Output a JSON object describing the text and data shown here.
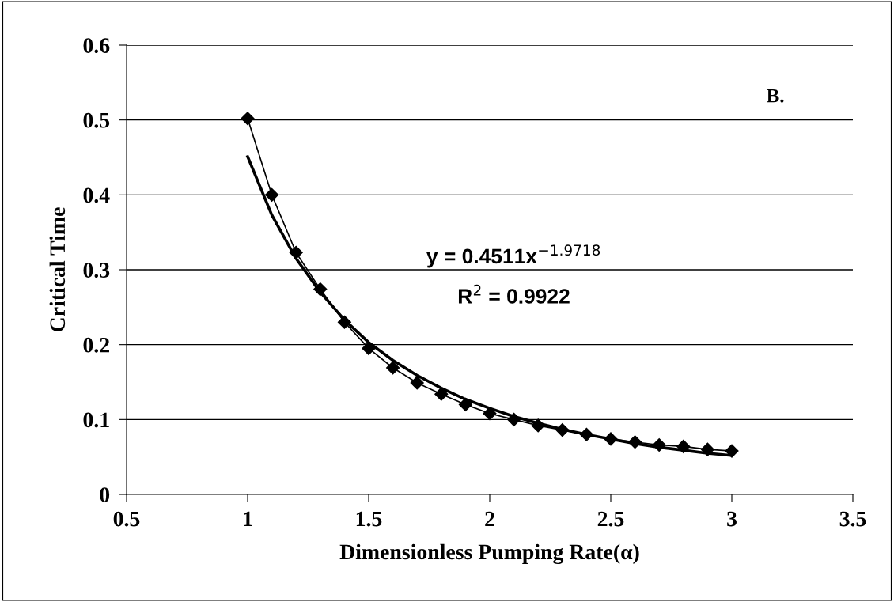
{
  "chart_data": {
    "type": "line",
    "xlabel": "Dimensionless Pumping Rate(α)",
    "ylabel": "Critical Time",
    "xlim": [
      0.5,
      3.5
    ],
    "xticks": [
      0.5,
      1,
      1.5,
      2,
      2.5,
      3,
      3.5
    ],
    "ylim": [
      0,
      0.6
    ],
    "yticks": [
      0,
      0.1,
      0.2,
      0.3,
      0.4,
      0.5,
      0.6
    ],
    "grid": "y",
    "legend": false,
    "series": [
      {
        "color": "#000000",
        "marker": "diamond",
        "x": [
          1.0,
          1.1,
          1.2,
          1.3,
          1.4,
          1.5,
          1.6,
          1.7,
          1.8,
          1.9,
          2.0,
          2.1,
          2.2,
          2.3,
          2.4,
          2.5,
          2.6,
          2.7,
          2.8,
          2.9,
          3.0
        ],
        "values": [
          0.502,
          0.4,
          0.323,
          0.274,
          0.23,
          0.195,
          0.169,
          0.149,
          0.134,
          0.12,
          0.108,
          0.1,
          0.092,
          0.086,
          0.08,
          0.074,
          0.07,
          0.066,
          0.064,
          0.06,
          0.058
        ]
      },
      {
        "color": "#000000",
        "marker": "none",
        "x": [
          1.0,
          1.1,
          1.2,
          1.3,
          1.4,
          1.5,
          1.6,
          1.7,
          1.8,
          1.9,
          2.0,
          2.1,
          2.2,
          2.3,
          2.4,
          2.5,
          2.6,
          2.7,
          2.8,
          2.9,
          3.0
        ],
        "values": [
          0.451,
          0.373,
          0.315,
          0.27,
          0.233,
          0.203,
          0.179,
          0.159,
          0.142,
          0.127,
          0.115,
          0.104,
          0.095,
          0.087,
          0.08,
          0.074,
          0.068,
          0.063,
          0.059,
          0.055,
          0.052
        ]
      }
    ],
    "annotations": [
      "B.",
      "y = 0.4511x$^{−1.9718}$",
      "R$^{2}$ = 0.9922"
    ]
  }
}
